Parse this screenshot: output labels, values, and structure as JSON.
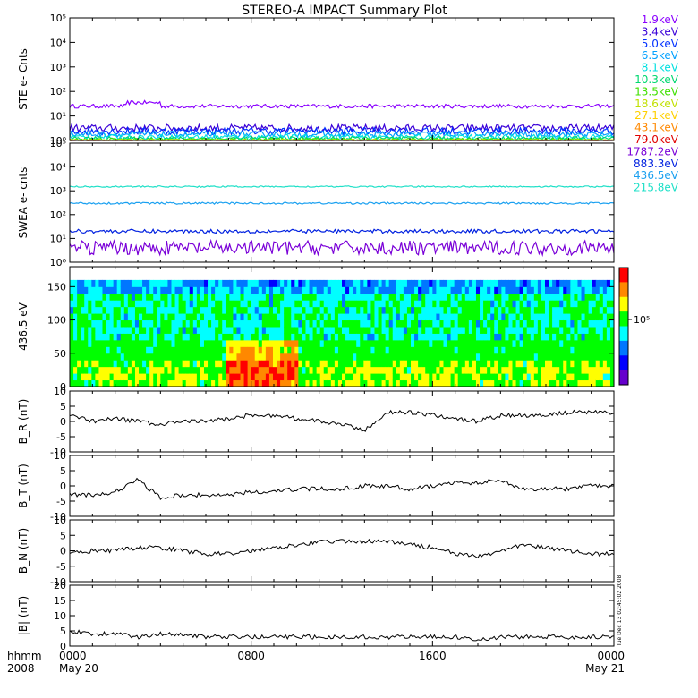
{
  "title": "STEREO-A IMPACT Summary Plot",
  "timestamp": "Tue Dec 13 02:45:02 2008",
  "time_axis": {
    "row1_label": "hhmm",
    "row2_label": "2008",
    "ticks": [
      {
        "label": "0000",
        "sub": "May 20",
        "hour": 0
      },
      {
        "label": "0800",
        "sub": "",
        "hour": 8
      },
      {
        "label": "1600",
        "sub": "",
        "hour": 16
      },
      {
        "label": "0000",
        "sub": "May 21",
        "hour": 24
      }
    ]
  },
  "colorbar": {
    "label": "10⁵",
    "colors": [
      "#ff0000",
      "#ff8800",
      "#ffff00",
      "#00ff00",
      "#00ffff",
      "#0077ff",
      "#0000ff",
      "#6600cc"
    ]
  },
  "chart_data": [
    {
      "id": "ste",
      "type": "line",
      "ylabel": "STE e- Cnts",
      "yscale": "log",
      "ylim": [
        1,
        100000
      ],
      "yticks": [
        "10⁰",
        "10¹",
        "10²",
        "10³",
        "10⁴",
        "10⁵"
      ],
      "xlim": [
        0,
        24
      ],
      "series": [
        {
          "name": "1.9keV",
          "color": "#8a00ff",
          "level": 25,
          "noise": 0.08
        },
        {
          "name": "3.4keV",
          "color": "#3a00d8",
          "level": 3.2,
          "noise": 0.15
        },
        {
          "name": "5.0keV",
          "color": "#0030ff",
          "level": 2.4,
          "noise": 0.15
        },
        {
          "name": "6.5keV",
          "color": "#00a0ff",
          "level": 1.8,
          "noise": 0.12
        },
        {
          "name": "8.1keV",
          "color": "#00e0e0",
          "level": 1.4,
          "noise": 0.1
        },
        {
          "name": "10.3keV",
          "color": "#00d870",
          "level": 1.2,
          "noise": 0.08
        },
        {
          "name": "13.5keV",
          "color": "#40e000",
          "level": 1.1,
          "noise": 0.05
        },
        {
          "name": "18.6keV",
          "color": "#c0e000",
          "level": 1.05,
          "noise": 0.03
        },
        {
          "name": "27.1keV",
          "color": "#ffd000",
          "level": 1.02,
          "noise": 0.02
        },
        {
          "name": "43.1keV",
          "color": "#ff8800",
          "level": 1.01,
          "noise": 0.01
        },
        {
          "name": "79.0keV",
          "color": "#e00000",
          "level": 1.0,
          "noise": 0.01
        }
      ]
    },
    {
      "id": "swea",
      "type": "line",
      "ylabel": "SWEA e- cnts",
      "yscale": "log",
      "ylim": [
        1,
        100000
      ],
      "yticks": [
        "10⁰",
        "10¹",
        "10²",
        "10³",
        "10⁴",
        "10⁵"
      ],
      "xlim": [
        0,
        24
      ],
      "series": [
        {
          "name": "1787.2eV",
          "color": "#7a00d8",
          "level": 4,
          "noise": 0.3
        },
        {
          "name": "883.3eV",
          "color": "#0020e0",
          "level": 20,
          "noise": 0.08
        },
        {
          "name": "436.5eV",
          "color": "#1aa0f0",
          "level": 300,
          "noise": 0.04
        },
        {
          "name": "215.8eV",
          "color": "#20e0c8",
          "level": 1500,
          "noise": 0.03
        }
      ]
    },
    {
      "id": "pad",
      "type": "heatmap",
      "ylabel": "436.5 eV",
      "ylim": [
        0,
        180
      ],
      "yticks": [
        "0",
        "50",
        "100",
        "150"
      ],
      "xlim": [
        0,
        24
      ]
    },
    {
      "id": "br",
      "type": "line",
      "ylabel": "B_R (nT)",
      "ylim": [
        -10,
        10
      ],
      "yticks": [
        "-10",
        "-5",
        "0",
        "5",
        "10"
      ],
      "xlim": [
        0,
        24
      ],
      "series": [
        {
          "color": "#000000",
          "t": [
            0,
            1,
            2,
            3,
            4,
            5,
            6,
            7,
            8,
            9,
            10,
            11,
            12,
            13,
            14,
            15,
            16,
            17,
            18,
            19,
            20,
            21,
            22,
            23,
            24
          ],
          "values": [
            2,
            0,
            1,
            0,
            -1,
            0,
            0,
            1,
            2,
            2,
            1,
            0,
            -1,
            -3,
            3,
            3,
            2,
            1,
            0,
            2,
            2,
            2,
            3,
            3,
            3
          ]
        }
      ]
    },
    {
      "id": "bt",
      "type": "line",
      "ylabel": "B_T (nT)",
      "ylim": [
        -10,
        10
      ],
      "yticks": [
        "-10",
        "-5",
        "0",
        "5",
        "10"
      ],
      "xlim": [
        0,
        24
      ],
      "series": [
        {
          "color": "#000000",
          "t": [
            0,
            1,
            2,
            3,
            4,
            5,
            6,
            7,
            8,
            9,
            10,
            11,
            12,
            13,
            14,
            15,
            16,
            17,
            18,
            19,
            20,
            21,
            22,
            23,
            24
          ],
          "values": [
            -3,
            -3,
            -2,
            2,
            -4,
            -3,
            -3,
            -3,
            -2,
            -2,
            -1,
            -1,
            -1,
            0,
            0,
            -1,
            0,
            1,
            1,
            2,
            -1,
            -1,
            -1,
            0,
            0
          ]
        }
      ]
    },
    {
      "id": "bn",
      "type": "line",
      "ylabel": "B_N (nT)",
      "ylim": [
        -10,
        10
      ],
      "yticks": [
        "-10",
        "-5",
        "0",
        "5",
        "10"
      ],
      "xlim": [
        0,
        24
      ],
      "series": [
        {
          "color": "#000000",
          "t": [
            0,
            1,
            2,
            3,
            4,
            5,
            6,
            7,
            8,
            9,
            10,
            11,
            12,
            13,
            14,
            15,
            16,
            17,
            18,
            19,
            20,
            21,
            22,
            23,
            24
          ],
          "values": [
            -1,
            0,
            0,
            1,
            1,
            0,
            -1,
            -1,
            0,
            1,
            2,
            3,
            3,
            3,
            3,
            2,
            1,
            -1,
            -2,
            0,
            2,
            1,
            0,
            -1,
            -1
          ]
        }
      ]
    },
    {
      "id": "bmag",
      "type": "line",
      "ylabel": "|B| (nT)",
      "ylim": [
        0,
        20
      ],
      "yticks": [
        "0",
        "5",
        "10",
        "15",
        "20"
      ],
      "xlim": [
        0,
        24
      ],
      "series": [
        {
          "color": "#000000",
          "t": [
            0,
            1,
            2,
            3,
            4,
            5,
            6,
            7,
            8,
            9,
            10,
            11,
            12,
            13,
            14,
            15,
            16,
            17,
            18,
            19,
            20,
            21,
            22,
            23,
            24
          ],
          "values": [
            5,
            4,
            4,
            3,
            4,
            4,
            3,
            3,
            3,
            3,
            3,
            3,
            3,
            3,
            3,
            3,
            3,
            3,
            2,
            3,
            3,
            3,
            3,
            3,
            3
          ]
        }
      ]
    }
  ]
}
